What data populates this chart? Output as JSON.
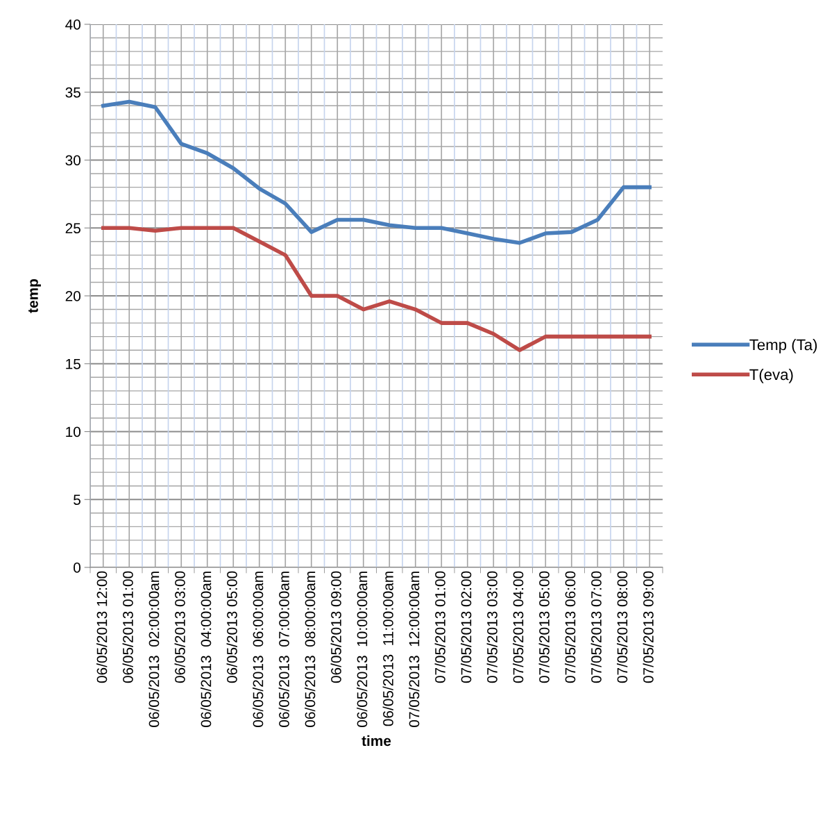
{
  "chart_data": {
    "type": "line",
    "xlabel": "time",
    "ylabel": "temp",
    "categories": [
      "06/05/2013 12:00",
      "06/05/2013 01:00",
      "06/05/2013  02:00:00am",
      "06/05/2013 03:00",
      "06/05/2013  04:00:00am",
      "06/05/2013 05:00",
      "06/05/2013  06:00:00am",
      "06/05/2013  07:00:00am",
      "06/05/2013  08:00:00am",
      "06/05/2013 09:00",
      "06/05/2013  10:00:00am",
      "06/05/2013  11:00:00am",
      "07/05/2013  12:00:00am",
      "07/05/2013 01:00",
      "07/05/2013 02:00",
      "07/05/2013 03:00",
      "07/05/2013 04:00",
      "07/05/2013 05:00",
      "07/05/2013 06:00",
      "07/05/2013 07:00",
      "07/05/2013 08:00",
      "07/05/2013 09:00"
    ],
    "series": [
      {
        "name": "Temp (Ta)",
        "color": "#4a7ebb",
        "values": [
          34.0,
          34.3,
          33.9,
          31.2,
          30.5,
          29.4,
          27.9,
          26.8,
          24.7,
          25.6,
          25.6,
          25.2,
          25.0,
          25.0,
          24.6,
          24.2,
          23.9,
          24.6,
          24.7,
          25.6,
          28.0,
          28.0
        ]
      },
      {
        "name": "T(eva)",
        "color": "#be4b48",
        "values": [
          25,
          25,
          24.8,
          25,
          25,
          25,
          24,
          23,
          20,
          20,
          19,
          19.6,
          19,
          18,
          18,
          17.2,
          16,
          17,
          17,
          17,
          17,
          17
        ]
      }
    ],
    "ylim": [
      0,
      40
    ],
    "yticks": [
      0,
      5,
      10,
      15,
      20,
      25,
      30,
      35,
      40
    ],
    "grid": true,
    "legend": "right",
    "marker": "none",
    "line_style": "solid"
  }
}
